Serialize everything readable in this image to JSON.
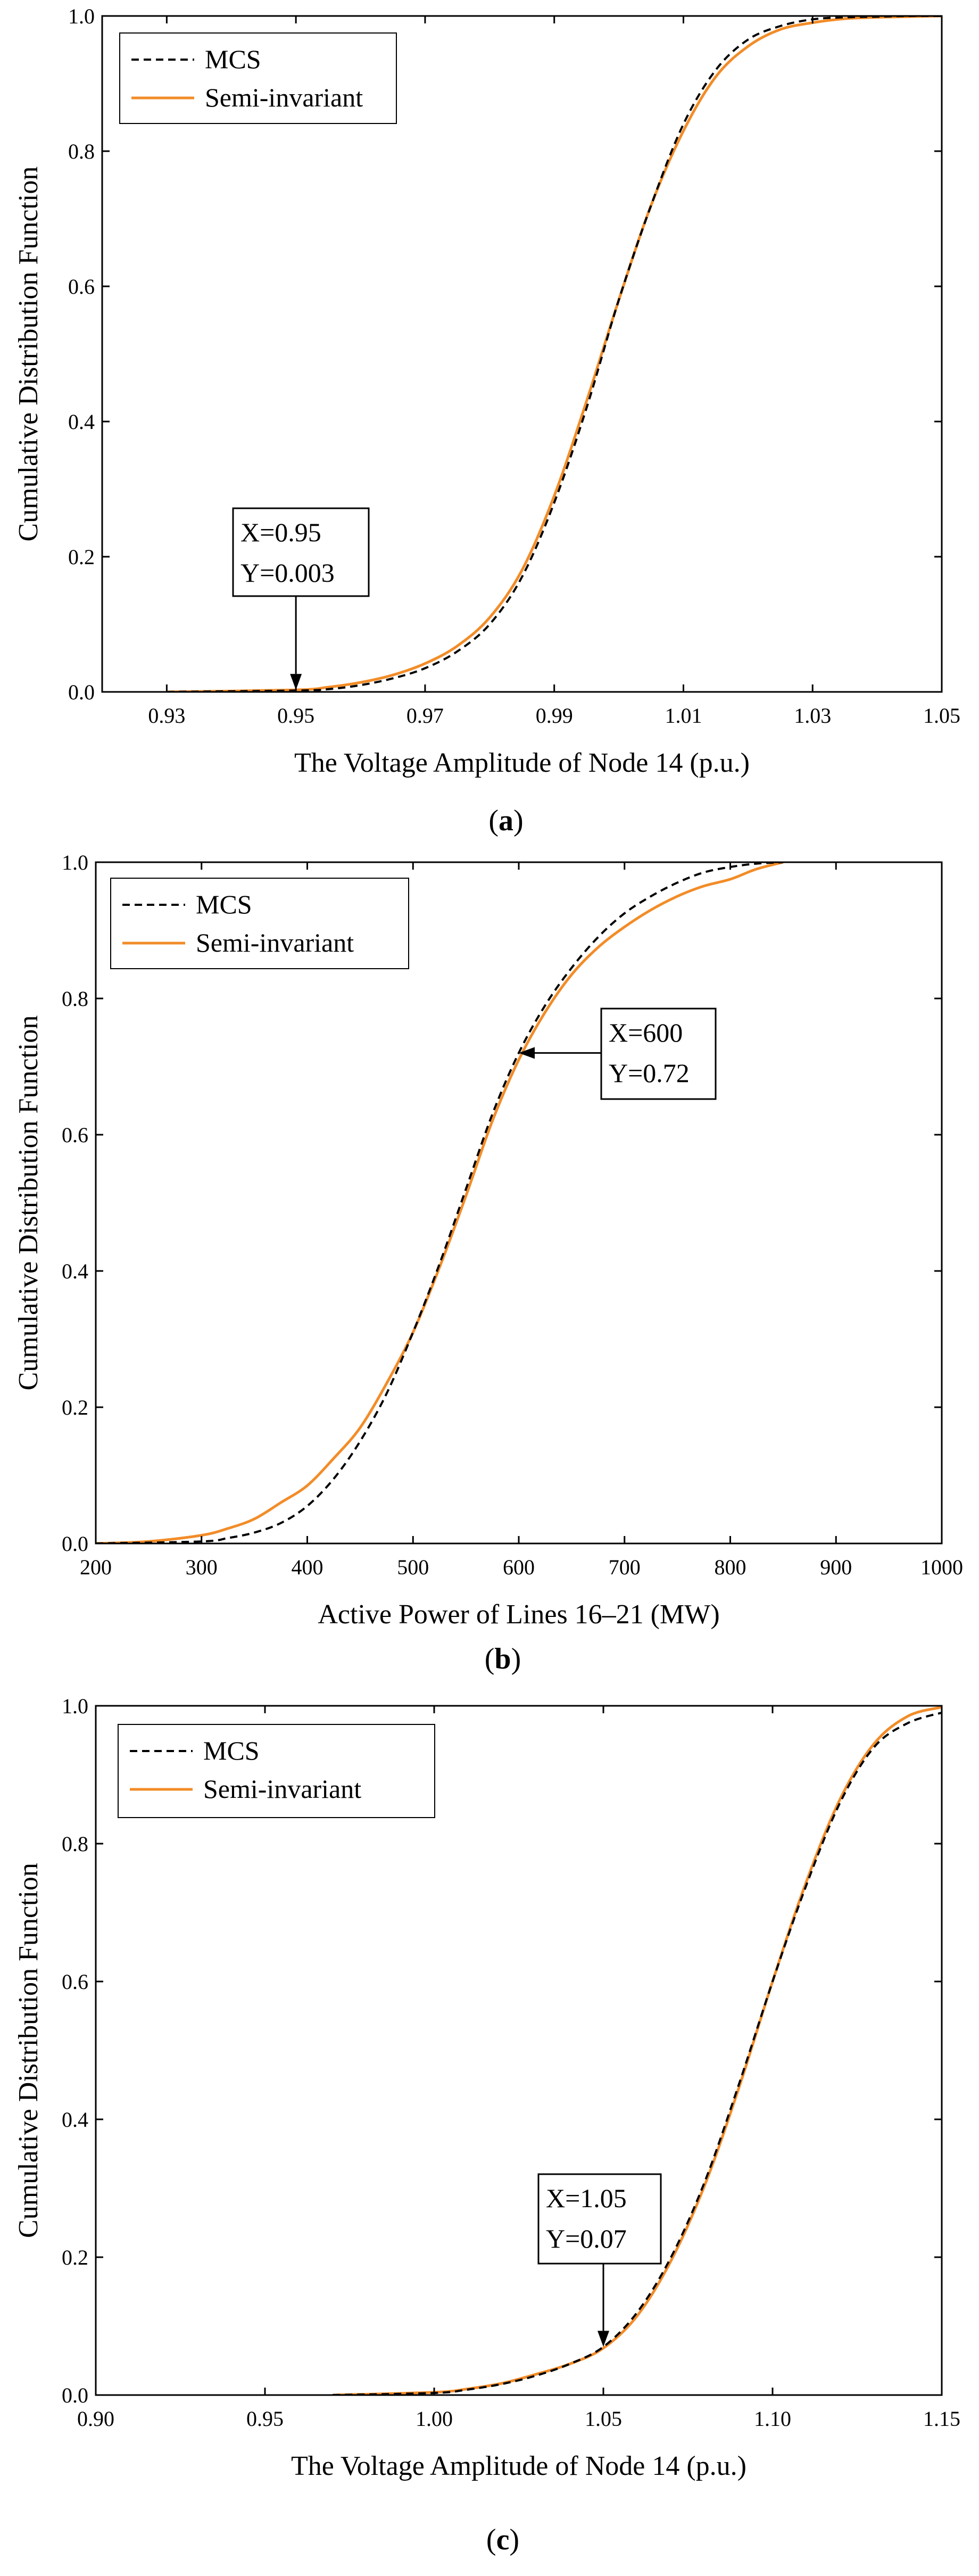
{
  "colors": {
    "mcs": "#000000",
    "semi_invariant": "#F28C28"
  },
  "chart_data": [
    {
      "type": "line",
      "caption": "a",
      "xlabel": "The Voltage Amplitude of Node 14 (p.u.)",
      "ylabel": "Cumulative Distribution Function",
      "xlim": [
        0.92,
        1.05
      ],
      "ylim": [
        0,
        1.0
      ],
      "xticks": [
        0.93,
        0.95,
        0.97,
        0.99,
        1.01,
        1.03,
        1.05
      ],
      "xtick_labels": [
        "0.93",
        "0.95",
        "0.97",
        "0.99",
        "1.01",
        "1.03",
        "1.05"
      ],
      "yticks": [
        0,
        0.2,
        0.4,
        0.6,
        0.8,
        1.0
      ],
      "ytick_labels": [
        "0.0",
        "0.2",
        "0.4",
        "0.6",
        "0.8",
        "1.0"
      ],
      "legend": {
        "position": "top-left",
        "entries": [
          "MCS",
          "Semi-invariant"
        ]
      },
      "series": [
        {
          "name": "MCS",
          "style": "dashed",
          "x": [
            0.93,
            0.95,
            0.955,
            0.96,
            0.965,
            0.97,
            0.975,
            0.98,
            0.985,
            0.99,
            0.995,
            1.0,
            1.005,
            1.01,
            1.015,
            1.02,
            1.025,
            1.03,
            1.035,
            1.04,
            1.045,
            1.05
          ],
          "values": [
            0.0,
            0.002,
            0.004,
            0.01,
            0.02,
            0.035,
            0.06,
            0.1,
            0.17,
            0.28,
            0.42,
            0.58,
            0.72,
            0.84,
            0.92,
            0.965,
            0.985,
            0.995,
            0.998,
            0.999,
            1.0,
            1.0
          ]
        },
        {
          "name": "Semi-invariant",
          "style": "solid",
          "x": [
            0.93,
            0.95,
            0.955,
            0.96,
            0.965,
            0.97,
            0.975,
            0.98,
            0.985,
            0.99,
            0.995,
            1.0,
            1.005,
            1.01,
            1.015,
            1.02,
            1.025,
            1.03,
            1.035,
            1.04,
            1.045,
            1.05
          ],
          "values": [
            0.0,
            0.003,
            0.007,
            0.014,
            0.025,
            0.042,
            0.068,
            0.11,
            0.18,
            0.29,
            0.43,
            0.58,
            0.72,
            0.83,
            0.91,
            0.955,
            0.98,
            0.99,
            0.996,
            0.998,
            0.999,
            1.0
          ]
        }
      ],
      "annotation": {
        "line1": "X=0.95",
        "line2": "Y=0.003",
        "x": 0.95,
        "y": 0.003,
        "direction": "down"
      }
    },
    {
      "type": "line",
      "caption": "b",
      "xlabel": "Active Power of Lines 16–21 (MW)",
      "ylabel": "Cumulative Distribution Function",
      "xlim": [
        200,
        1000
      ],
      "ylim": [
        0,
        1.0
      ],
      "xticks": [
        200,
        300,
        400,
        500,
        600,
        700,
        800,
        900,
        1000
      ],
      "xtick_labels": [
        "200",
        "300",
        "400",
        "500",
        "600",
        "700",
        "800",
        "900",
        "1000"
      ],
      "yticks": [
        0,
        0.2,
        0.4,
        0.6,
        0.8,
        1.0
      ],
      "ytick_labels": [
        "0.0",
        "0.2",
        "0.4",
        "0.6",
        "0.8",
        "1.0"
      ],
      "legend": {
        "position": "top-left",
        "entries": [
          "MCS",
          "Semi-invariant"
        ]
      },
      "series": [
        {
          "name": "MCS",
          "style": "dashed",
          "x": [
            200,
            300,
            325,
            350,
            375,
            400,
            425,
            450,
            475,
            500,
            525,
            550,
            575,
            600,
            625,
            650,
            675,
            700,
            725,
            750,
            775,
            800,
            825,
            850
          ],
          "values": [
            0.0,
            0.003,
            0.008,
            0.016,
            0.03,
            0.055,
            0.095,
            0.15,
            0.22,
            0.31,
            0.41,
            0.52,
            0.63,
            0.72,
            0.79,
            0.845,
            0.89,
            0.925,
            0.95,
            0.97,
            0.985,
            0.993,
            0.998,
            1.0
          ]
        },
        {
          "name": "Semi-invariant",
          "style": "solid",
          "x": [
            200,
            250,
            300,
            325,
            350,
            375,
            400,
            425,
            450,
            475,
            500,
            525,
            550,
            575,
            600,
            625,
            650,
            675,
            700,
            725,
            750,
            775,
            800,
            825,
            850
          ],
          "values": [
            0.0,
            0.003,
            0.012,
            0.022,
            0.036,
            0.06,
            0.085,
            0.125,
            0.17,
            0.235,
            0.31,
            0.405,
            0.51,
            0.62,
            0.71,
            0.78,
            0.835,
            0.875,
            0.905,
            0.93,
            0.95,
            0.965,
            0.975,
            0.99,
            1.0
          ]
        }
      ],
      "annotation": {
        "line1": "X=600",
        "line2": "Y=0.72",
        "x": 600,
        "y": 0.72,
        "direction": "left"
      }
    },
    {
      "type": "line",
      "caption": "c",
      "xlabel": "The Voltage Amplitude of Node 14 (p.u.)",
      "ylabel": "Cumulative Distribution Function",
      "xlim": [
        0.9,
        1.15
      ],
      "ylim": [
        0,
        1.0
      ],
      "xticks": [
        0.9,
        0.95,
        1.0,
        1.05,
        1.1,
        1.15
      ],
      "xtick_labels": [
        "0.90",
        "0.95",
        "1.00",
        "1.05",
        "1.10",
        "1.15"
      ],
      "yticks": [
        0,
        0.2,
        0.4,
        0.6,
        0.8,
        1.0
      ],
      "ytick_labels": [
        "0.0",
        "0.2",
        "0.4",
        "0.6",
        "0.8",
        "1.0"
      ],
      "legend": {
        "position": "top-left",
        "entries": [
          "MCS",
          "Semi-invariant"
        ]
      },
      "series": [
        {
          "name": "MCS",
          "style": "dashed",
          "x": [
            0.97,
            1.0,
            1.01,
            1.02,
            1.03,
            1.04,
            1.05,
            1.06,
            1.07,
            1.08,
            1.09,
            1.1,
            1.11,
            1.12,
            1.13,
            1.14,
            1.15
          ],
          "values": [
            0.0,
            0.003,
            0.008,
            0.016,
            0.028,
            0.045,
            0.07,
            0.12,
            0.2,
            0.31,
            0.45,
            0.6,
            0.74,
            0.86,
            0.94,
            0.975,
            0.99
          ]
        },
        {
          "name": "Semi-invariant",
          "style": "solid",
          "x": [
            0.97,
            1.0,
            1.01,
            1.02,
            1.03,
            1.04,
            1.05,
            1.06,
            1.07,
            1.08,
            1.09,
            1.1,
            1.11,
            1.12,
            1.13,
            1.14,
            1.15
          ],
          "values": [
            0.0,
            0.004,
            0.009,
            0.017,
            0.03,
            0.045,
            0.068,
            0.115,
            0.195,
            0.305,
            0.445,
            0.6,
            0.745,
            0.865,
            0.945,
            0.985,
            0.998
          ]
        }
      ],
      "annotation": {
        "line1": "X=1.05",
        "line2": "Y=0.07",
        "x": 1.05,
        "y": 0.07,
        "direction": "down"
      }
    }
  ]
}
